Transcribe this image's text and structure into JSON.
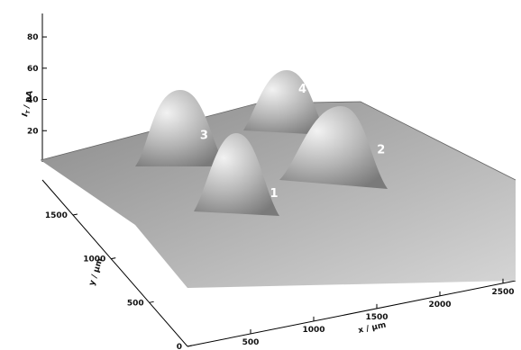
{
  "chart_data": {
    "type": "surface3d",
    "title": "",
    "xlabel": "x / µm",
    "ylabel": "y / µm",
    "zlabel_main": "I",
    "zlabel_sub": "T",
    "zlabel_unit": "/ pA",
    "x_ticks": [
      "500",
      "1000",
      "1500",
      "2000",
      "2500"
    ],
    "y_ticks": [
      "0",
      "500",
      "1000",
      "1500"
    ],
    "z_ticks": [
      "20",
      "40",
      "60",
      "80"
    ],
    "xlim": [
      0,
      2600
    ],
    "ylim": [
      0,
      1900
    ],
    "zlim": [
      0,
      95
    ],
    "baseline_current": 12,
    "peaks": [
      {
        "label": "1",
        "x": 1200,
        "y": 850,
        "height": 52
      },
      {
        "label": "2",
        "x": 2200,
        "y": 1100,
        "height": 48
      },
      {
        "label": "3",
        "x": 1100,
        "y": 1600,
        "height": 46
      },
      {
        "label": "4",
        "x": 2000,
        "y": 1800,
        "height": 53
      }
    ]
  }
}
